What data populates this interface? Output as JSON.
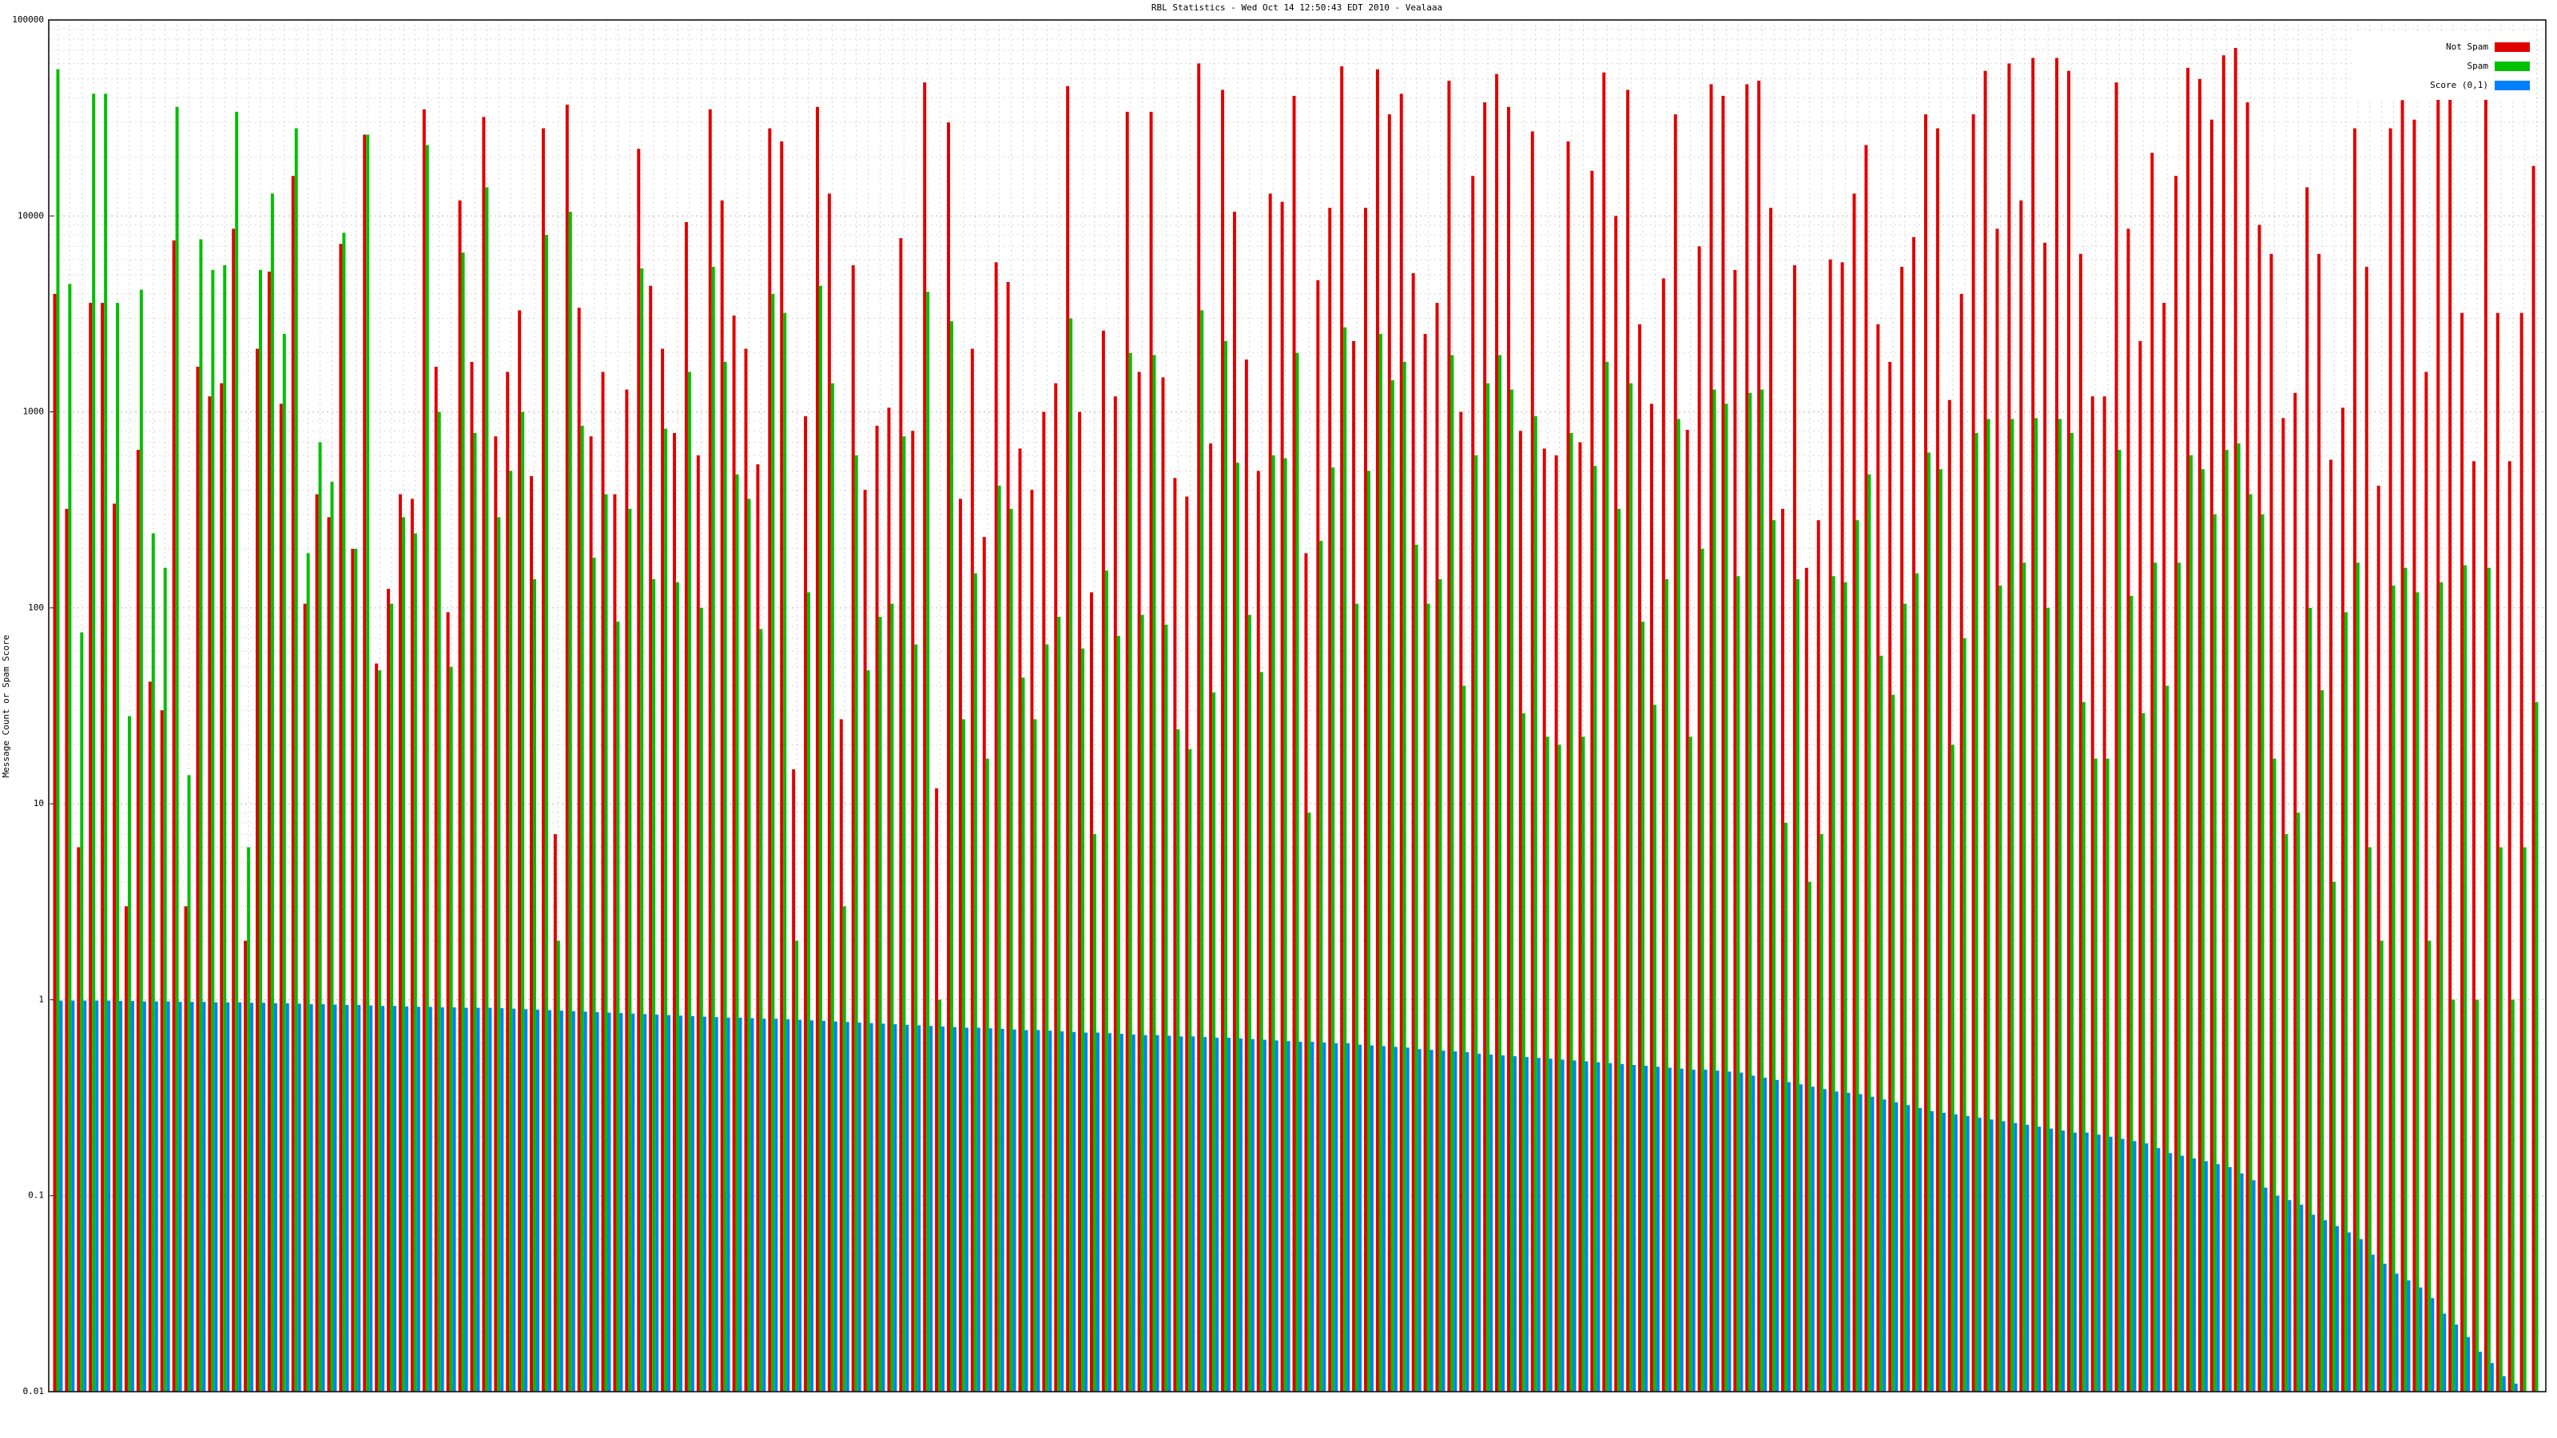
{
  "chart_data": {
    "type": "bar",
    "log_scale": true,
    "grid": true,
    "legend": "upper right",
    "title": "RBL Statistics - Wed Oct 14 12:50:43 EDT 2010 - Vealaaa",
    "y_label": "Message Count or Spam Score",
    "ylim": [
      0.01,
      100000
    ],
    "yticks": [
      0.01,
      0.1,
      1,
      10,
      100,
      1000,
      10000,
      100000
    ],
    "categories": [
      null,
      null,
      null,
      null,
      null,
      null,
      null,
      null,
      null,
      null,
      null,
      null,
      null,
      null,
      null,
      null,
      null,
      null,
      null,
      null,
      null,
      null,
      null,
      null,
      null,
      null,
      null,
      null,
      null,
      null,
      null,
      null,
      null,
      null,
      null,
      null,
      null,
      null,
      null,
      null,
      null,
      null,
      null,
      null,
      null,
      null,
      null,
      null,
      null,
      null,
      null,
      null,
      null,
      null,
      null,
      null,
      null,
      null,
      null,
      null,
      null,
      null,
      null,
      null,
      null,
      null,
      null,
      null,
      null,
      null,
      null,
      null,
      null,
      null,
      null,
      null,
      null,
      null,
      null,
      null,
      null,
      null,
      null,
      null,
      null,
      null,
      null,
      null,
      null,
      null,
      null,
      null,
      null,
      null,
      null,
      null,
      null,
      null,
      null,
      null,
      null,
      null,
      null,
      null,
      null,
      null,
      null,
      null,
      null,
      null,
      null,
      null,
      null,
      null,
      null,
      null,
      null,
      null,
      null,
      null,
      null,
      null,
      null,
      null,
      null,
      null,
      null,
      null,
      null,
      null,
      null,
      null,
      null,
      null,
      null,
      null,
      null,
      null,
      null,
      null,
      null,
      null,
      null,
      null,
      null,
      null,
      null,
      null,
      null,
      null,
      null,
      null,
      null,
      null,
      null,
      null,
      null,
      null,
      null,
      null,
      null,
      null,
      null,
      null,
      null,
      null,
      null,
      null,
      null,
      null,
      null,
      null,
      null,
      null,
      null,
      null,
      null,
      null,
      null,
      null,
      null,
      null,
      null,
      null,
      null,
      null,
      null,
      null,
      null,
      null,
      null,
      null,
      null,
      null,
      null,
      null,
      null,
      null,
      null,
      null,
      null,
      null,
      null,
      null,
      null,
      null,
      null,
      null,
      null
    ],
    "series": [
      {
        "name": "Not Spam",
        "color": "#e00000",
        "values": [
          4000,
          320,
          6,
          3600,
          3600,
          340,
          3,
          640,
          42,
          30,
          7500,
          3,
          1700,
          1200,
          1400,
          8600,
          2,
          2100,
          5200,
          1100,
          16000,
          105,
          380,
          290,
          7200,
          200,
          26000,
          52,
          125,
          380,
          360,
          35000,
          1700,
          95,
          12000,
          1800,
          32000,
          750,
          1600,
          3300,
          470,
          28000,
          7,
          37000,
          3400,
          750,
          1600,
          380,
          1300,
          22000,
          4400,
          2100,
          780,
          9300,
          600,
          35000,
          12000,
          3100,
          2100,
          540,
          28000,
          24000,
          15,
          950,
          36000,
          13000,
          27,
          5600,
          400,
          850,
          1050,
          7700,
          800,
          48000,
          12,
          30000,
          360,
          2100,
          230,
          5800,
          4600,
          650,
          400,
          1000,
          1400,
          46000,
          1000,
          120,
          2600,
          1200,
          34000,
          1600,
          34000,
          1500,
          460,
          370,
          60000,
          690,
          44000,
          10500,
          1850,
          500,
          13000,
          11800,
          41000,
          190,
          4700,
          11000,
          58000,
          2300,
          11000,
          56000,
          33000,
          42000,
          5100,
          2500,
          3600,
          49000,
          1000,
          16000,
          38000,
          53000,
          36000,
          800,
          27000,
          650,
          600,
          24000,
          700,
          17000,
          54000,
          10000,
          44000,
          2800,
          1100,
          4800,
          33000,
          810,
          7000,
          47000,
          41000,
          5300,
          47000,
          49000,
          11000,
          320,
          5600,
          160,
          280,
          6000,
          5800,
          13000,
          23000,
          2800,
          1800,
          5500,
          7800,
          33000,
          28000,
          1150,
          4000,
          33000,
          55000,
          8600,
          60000,
          12000,
          64000,
          7300,
          64000,
          55000,
          6400,
          1200,
          1200,
          48000,
          8600,
          2300,
          21000,
          3600,
          16000,
          57000,
          50000,
          31000,
          66000,
          72000,
          38000,
          9000,
          6400,
          930,
          1250,
          14000,
          6400,
          570,
          1050,
          28000,
          5500,
          420,
          28000,
          39000,
          31000,
          1600,
          42000,
          64000,
          3200,
          560,
          63000,
          3200,
          560,
          3200,
          18000
        ]
      },
      {
        "name": "Spam",
        "color": "#00c000",
        "values": [
          56000,
          4500,
          75,
          42000,
          42000,
          3600,
          28,
          4200,
          240,
          160,
          36000,
          14,
          7600,
          5300,
          5600,
          34000,
          6,
          5300,
          13000,
          2500,
          28000,
          190,
          700,
          440,
          8200,
          200,
          26000,
          48,
          105,
          290,
          240,
          23000,
          1000,
          50,
          6500,
          780,
          14000,
          290,
          500,
          1000,
          140,
          8000,
          2,
          10500,
          850,
          180,
          380,
          85,
          320,
          5400,
          140,
          820,
          135,
          1600,
          100,
          5500,
          1800,
          480,
          360,
          78,
          4000,
          3200,
          2,
          120,
          4400,
          1400,
          3,
          600,
          48,
          90,
          105,
          750,
          65,
          4100,
          1,
          2900,
          27,
          150,
          17,
          420,
          320,
          44,
          27,
          65,
          90,
          3000,
          62,
          7,
          155,
          72,
          2000,
          92,
          1950,
          82,
          24,
          19,
          3300,
          37,
          2300,
          550,
          92,
          47,
          600,
          580,
          2000,
          9,
          220,
          520,
          2700,
          105,
          500,
          2500,
          1450,
          1800,
          210,
          105,
          140,
          1950,
          40,
          600,
          1400,
          1950,
          1300,
          29,
          950,
          22,
          20,
          780,
          22,
          530,
          1800,
          320,
          1400,
          85,
          32,
          140,
          920,
          22,
          200,
          1300,
          1100,
          145,
          1250,
          1300,
          280,
          8,
          140,
          4,
          7,
          145,
          135,
          280,
          480,
          57,
          36,
          105,
          150,
          620,
          510,
          20,
          70,
          780,
          920,
          130,
          920,
          170,
          930,
          100,
          920,
          780,
          33,
          17,
          17,
          640,
          115,
          29,
          170,
          40,
          170,
          600,
          510,
          300,
          640,
          690,
          380,
          300,
          17,
          7,
          9,
          100,
          38,
          4,
          95,
          170,
          6,
          2,
          130,
          160,
          120,
          2,
          135,
          1,
          165,
          1,
          160,
          6,
          1,
          6,
          33
        ]
      },
      {
        "name": "Score (0,1)",
        "color": "#0080ff",
        "values": [
          0.99,
          0.99,
          0.99,
          0.99,
          0.99,
          0.985,
          0.985,
          0.98,
          0.98,
          0.98,
          0.975,
          0.975,
          0.975,
          0.97,
          0.97,
          0.97,
          0.965,
          0.965,
          0.96,
          0.96,
          0.955,
          0.95,
          0.95,
          0.945,
          0.94,
          0.94,
          0.935,
          0.93,
          0.93,
          0.925,
          0.92,
          0.92,
          0.915,
          0.915,
          0.91,
          0.91,
          0.91,
          0.905,
          0.9,
          0.895,
          0.89,
          0.885,
          0.88,
          0.875,
          0.87,
          0.865,
          0.86,
          0.855,
          0.85,
          0.845,
          0.84,
          0.835,
          0.83,
          0.825,
          0.82,
          0.815,
          0.81,
          0.81,
          0.805,
          0.8,
          0.8,
          0.795,
          0.79,
          0.785,
          0.78,
          0.775,
          0.77,
          0.765,
          0.76,
          0.755,
          0.75,
          0.745,
          0.74,
          0.735,
          0.73,
          0.725,
          0.72,
          0.72,
          0.715,
          0.71,
          0.705,
          0.7,
          0.7,
          0.695,
          0.69,
          0.685,
          0.68,
          0.68,
          0.675,
          0.67,
          0.665,
          0.66,
          0.66,
          0.655,
          0.65,
          0.65,
          0.645,
          0.64,
          0.64,
          0.635,
          0.63,
          0.625,
          0.62,
          0.615,
          0.61,
          0.61,
          0.605,
          0.6,
          0.6,
          0.59,
          0.585,
          0.58,
          0.575,
          0.57,
          0.56,
          0.555,
          0.55,
          0.545,
          0.54,
          0.53,
          0.525,
          0.52,
          0.515,
          0.51,
          0.505,
          0.5,
          0.495,
          0.49,
          0.485,
          0.48,
          0.475,
          0.47,
          0.465,
          0.46,
          0.455,
          0.45,
          0.445,
          0.44,
          0.44,
          0.435,
          0.43,
          0.425,
          0.41,
          0.4,
          0.39,
          0.38,
          0.37,
          0.36,
          0.35,
          0.34,
          0.335,
          0.33,
          0.32,
          0.31,
          0.3,
          0.29,
          0.28,
          0.27,
          0.265,
          0.26,
          0.255,
          0.25,
          0.245,
          0.24,
          0.235,
          0.23,
          0.225,
          0.22,
          0.215,
          0.21,
          0.21,
          0.205,
          0.2,
          0.195,
          0.19,
          0.185,
          0.175,
          0.165,
          0.16,
          0.155,
          0.15,
          0.145,
          0.14,
          0.13,
          0.12,
          0.11,
          0.1,
          0.095,
          0.09,
          0.08,
          0.075,
          0.07,
          0.065,
          0.06,
          0.05,
          0.045,
          0.04,
          0.037,
          0.034,
          0.03,
          0.025,
          0.022,
          0.019,
          0.016,
          0.014,
          0.012,
          0.011,
          0.01,
          0.01
        ]
      }
    ]
  }
}
